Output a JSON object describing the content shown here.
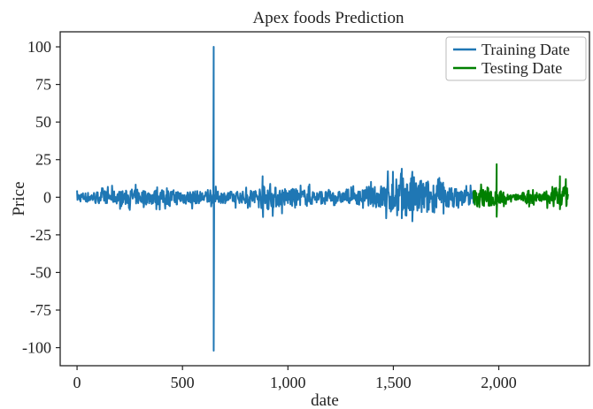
{
  "chart_data": {
    "type": "line",
    "title": "Apex foods Prediction",
    "xlabel": "date",
    "ylabel": "Price",
    "xlim": [
      -80,
      2430
    ],
    "ylim": [
      -112,
      110
    ],
    "x_ticks": [
      0,
      500,
      1000,
      1500,
      2000
    ],
    "x_tick_labels": [
      "0",
      "500",
      "1,000",
      "1,500",
      "2,000"
    ],
    "y_ticks": [
      100,
      75,
      50,
      25,
      0,
      -25,
      -50,
      -75,
      -100
    ],
    "y_tick_labels": [
      "100",
      "75",
      "50",
      "25",
      "0",
      "-25",
      "-50",
      "-75",
      "-100"
    ],
    "grid": false,
    "legend_position": "top-right",
    "series": [
      {
        "name": "Training Date",
        "color": "#1f77b4",
        "x_range": [
          0,
          1880
        ],
        "baseline": 0,
        "noise_envelope": [
          [
            0,
            3
          ],
          [
            100,
            4
          ],
          [
            300,
            5
          ],
          [
            500,
            5
          ],
          [
            600,
            4
          ],
          [
            800,
            4
          ],
          [
            880,
            8
          ],
          [
            1000,
            6
          ],
          [
            1200,
            4
          ],
          [
            1300,
            4
          ],
          [
            1400,
            6
          ],
          [
            1500,
            12
          ],
          [
            1600,
            14
          ],
          [
            1700,
            10
          ],
          [
            1800,
            6
          ],
          [
            1880,
            5
          ]
        ],
        "spikes": [
          {
            "x": 648,
            "high": 100,
            "low": -102
          },
          {
            "x": 880,
            "high": 14,
            "low": -6
          },
          {
            "x": 1540,
            "high": 19,
            "low": -14
          },
          {
            "x": 1590,
            "high": 17,
            "low": -16
          }
        ]
      },
      {
        "name": "Testing Date",
        "color": "#008000",
        "x_range": [
          1880,
          2330
        ],
        "baseline": 0,
        "noise_envelope": [
          [
            1880,
            5
          ],
          [
            1950,
            7
          ],
          [
            2000,
            5
          ],
          [
            2050,
            2
          ],
          [
            2100,
            2
          ],
          [
            2150,
            6
          ],
          [
            2200,
            3
          ],
          [
            2250,
            5
          ],
          [
            2300,
            8
          ],
          [
            2330,
            6
          ]
        ],
        "spikes": [
          {
            "x": 1990,
            "high": 22,
            "low": -13
          },
          {
            "x": 2290,
            "high": 14,
            "low": -8
          }
        ]
      }
    ]
  }
}
